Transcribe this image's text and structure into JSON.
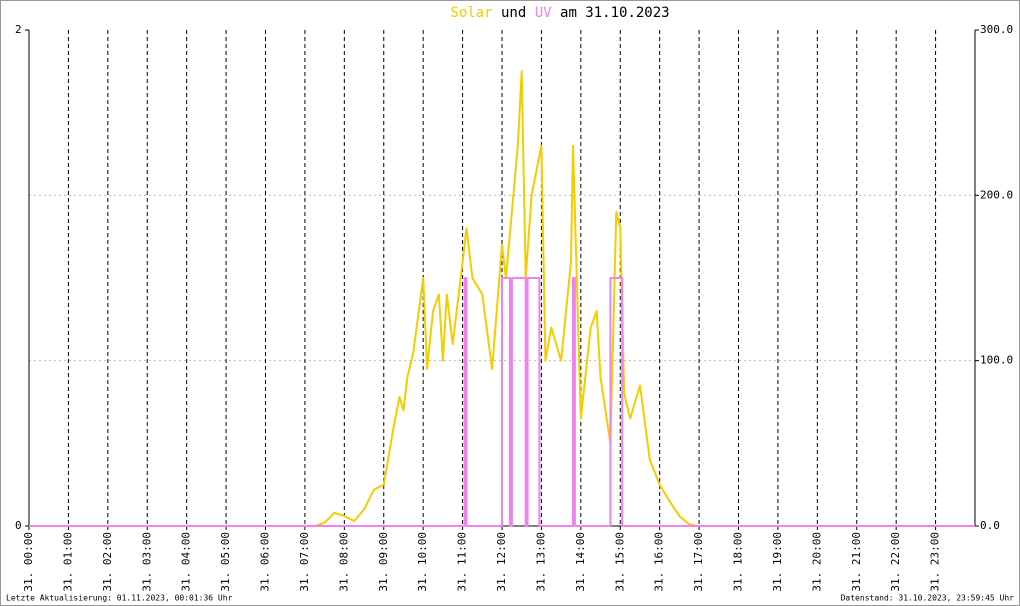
{
  "chart_data": {
    "type": "line",
    "title_connector": "und",
    "title_suffix": "am 31.10.2023",
    "annotations": [
      "Letzte Aktualisierung: 01.11.2023, 00:01:36 Uhr",
      "Datenstand: 31.10.2023, 23:59:45 Uhr"
    ],
    "xlim": [
      0,
      24
    ],
    "xticks": [
      {
        "value": 0,
        "label": "31. 00:00"
      },
      {
        "value": 1,
        "label": "31. 01:00"
      },
      {
        "value": 2,
        "label": "31. 02:00"
      },
      {
        "value": 3,
        "label": "31. 03:00"
      },
      {
        "value": 4,
        "label": "31. 04:00"
      },
      {
        "value": 5,
        "label": "31. 05:00"
      },
      {
        "value": 6,
        "label": "31. 06:00"
      },
      {
        "value": 7,
        "label": "31. 07:00"
      },
      {
        "value": 8,
        "label": "31. 08:00"
      },
      {
        "value": 9,
        "label": "31. 09:00"
      },
      {
        "value": 10,
        "label": "31. 10:00"
      },
      {
        "value": 11,
        "label": "31. 11:00"
      },
      {
        "value": 12,
        "label": "31. 12:00"
      },
      {
        "value": 13,
        "label": "31. 13:00"
      },
      {
        "value": 14,
        "label": "31. 14:00"
      },
      {
        "value": 15,
        "label": "31. 15:00"
      },
      {
        "value": 16,
        "label": "31. 16:00"
      },
      {
        "value": 17,
        "label": "31. 17:00"
      },
      {
        "value": 18,
        "label": "31. 18:00"
      },
      {
        "value": 19,
        "label": "31. 19:00"
      },
      {
        "value": 20,
        "label": "31. 20:00"
      },
      {
        "value": 21,
        "label": "31. 21:00"
      },
      {
        "value": 22,
        "label": "31. 22:00"
      },
      {
        "value": 23,
        "label": "31. 23:00"
      }
    ],
    "ylim": [
      0,
      2
    ],
    "yticks": [
      0,
      2
    ],
    "y2lim": [
      0,
      300
    ],
    "y2ticks": [
      {
        "value": 0,
        "label": "0.0"
      },
      {
        "value": 100,
        "label": "100.0"
      },
      {
        "value": 200,
        "label": "200.0"
      },
      {
        "value": 300,
        "label": "300.0"
      }
    ],
    "grid": true,
    "series": [
      {
        "name": "Solar",
        "color": "#f5cc00",
        "axis": "y2",
        "x": [
          0,
          7.25,
          7.5,
          7.75,
          8.0,
          8.25,
          8.5,
          8.75,
          9.0,
          9.25,
          9.4,
          9.5,
          9.6,
          9.75,
          10.0,
          10.1,
          10.25,
          10.4,
          10.5,
          10.6,
          10.75,
          11.0,
          11.1,
          11.25,
          11.5,
          11.75,
          12.0,
          12.1,
          12.25,
          12.4,
          12.5,
          12.6,
          12.75,
          13.0,
          13.1,
          13.25,
          13.5,
          13.75,
          13.8,
          14.0,
          14.25,
          14.4,
          14.5,
          14.75,
          14.9,
          15.0,
          15.1,
          15.25,
          15.5,
          15.75,
          16.0,
          16.25,
          16.5,
          16.75,
          17.0,
          24
        ],
        "values": [
          0,
          0,
          2,
          8,
          6,
          3,
          10,
          22,
          25,
          60,
          78,
          70,
          90,
          105,
          150,
          95,
          130,
          140,
          100,
          140,
          110,
          160,
          180,
          150,
          140,
          95,
          170,
          150,
          190,
          230,
          275,
          150,
          200,
          230,
          100,
          120,
          100,
          160,
          230,
          65,
          120,
          130,
          90,
          50,
          190,
          180,
          80,
          65,
          85,
          40,
          25,
          15,
          6,
          1,
          0,
          0
        ]
      },
      {
        "name": "UV",
        "color": "#ee82ee",
        "axis": "y",
        "x": [
          0,
          11.05,
          11.05,
          11.1,
          11.1,
          12.0,
          12.0,
          12.2,
          12.2,
          12.25,
          12.25,
          12.6,
          12.6,
          12.65,
          12.65,
          12.95,
          12.95,
          13.8,
          13.8,
          13.85,
          13.85,
          14.75,
          14.75,
          15.05,
          15.05,
          24
        ],
        "values": [
          0,
          0,
          1,
          1,
          0,
          0,
          1,
          1,
          0,
          0,
          1,
          1,
          0,
          0,
          1,
          1,
          0,
          0,
          1,
          1,
          0,
          0,
          1,
          1,
          0,
          0
        ]
      }
    ]
  }
}
